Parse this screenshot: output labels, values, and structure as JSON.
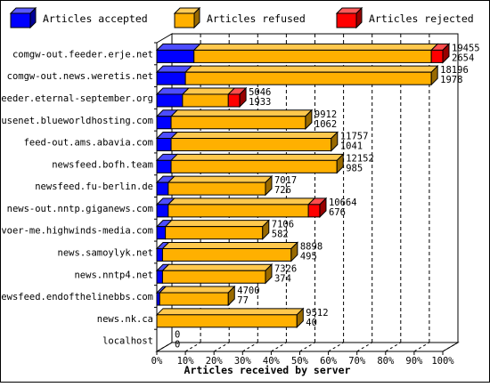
{
  "legend": {
    "placement": "top",
    "items": [
      {
        "label": "Articles accepted",
        "color": "#0000ff",
        "icon": "blue-cube-icon"
      },
      {
        "label": "Articles refused",
        "color": "#ffb000",
        "icon": "orange-cube-icon"
      },
      {
        "label": "Articles rejected",
        "color": "#ff0000",
        "icon": "red-cube-icon"
      }
    ]
  },
  "chart_data": {
    "type": "bar",
    "orientation": "horizontal",
    "stacked": true,
    "xlabel": "Articles received by server",
    "ylabel": "",
    "xlim": [
      0,
      100
    ],
    "xunit": "percent",
    "grid": true,
    "ticks": [
      "0%",
      "10%",
      "20%",
      "30%",
      "40%",
      "50%",
      "60%",
      "70%",
      "80%",
      "90%",
      "100%"
    ],
    "categories": [
      "comgw-out.feeder.erje.net",
      "comgw-out.news.weretis.net",
      "feeder.eternal-september.org",
      "usenet.blueworldhosting.com",
      "feed-out.ams.abavia.com",
      "newsfeed.bofh.team",
      "newsfeed.fu-berlin.de",
      "news-out.nntp.giganews.com",
      "voer-me.highwinds-media.com",
      "news.samoylyk.net",
      "news.nntp4.net",
      "newsfeed.endofthelinebbs.com",
      "news.nk.ca",
      "localhost"
    ],
    "series": [
      {
        "name": "Articles accepted",
        "color": "#0000ff",
        "values": [
          13,
          10,
          9,
          5,
          5,
          5,
          4,
          4,
          3,
          2,
          2,
          1,
          0,
          0
        ]
      },
      {
        "name": "Articles refused",
        "color": "#ffb000",
        "values": [
          83,
          86,
          16,
          47,
          56,
          58,
          34,
          49,
          34,
          45,
          36,
          24,
          49,
          0
        ]
      },
      {
        "name": "Articles rejected",
        "color": "#ff0000",
        "values": [
          4,
          0,
          4,
          0,
          0,
          0,
          0,
          4,
          0,
          0,
          0,
          0,
          0,
          0
        ]
      }
    ],
    "labels_total": [
      "19455",
      "18196",
      "5046",
      "9912",
      "11757",
      "12152",
      "7017",
      "10664",
      "7106",
      "8898",
      "7326",
      "4700",
      "9512",
      "0"
    ],
    "labels_accepted": [
      "2654",
      "1978",
      "1933",
      "1062",
      "1041",
      "985",
      "726",
      "676",
      "582",
      "495",
      "374",
      "77",
      "40",
      "0"
    ]
  }
}
